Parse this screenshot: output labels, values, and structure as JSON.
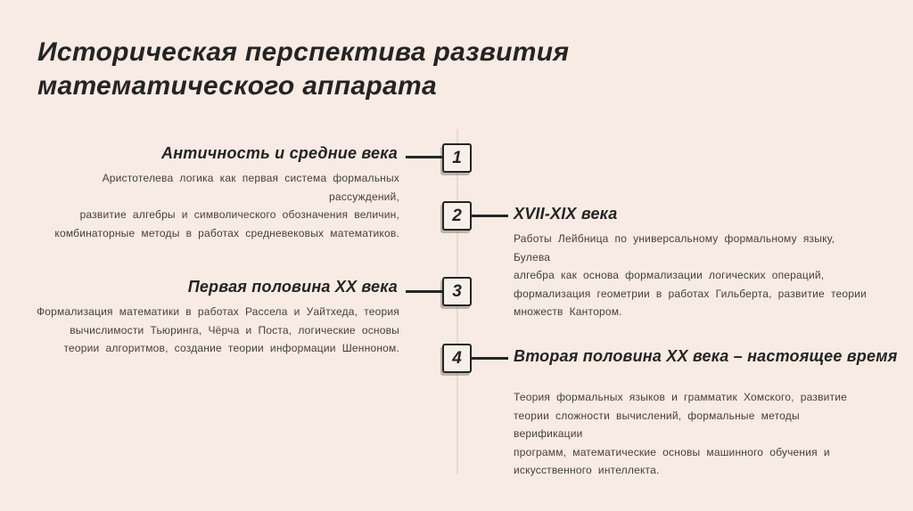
{
  "page": {
    "title": "Историческая перспектива развития\nматематического аппарата"
  },
  "colors": {
    "background": "#f8ebe3",
    "timeline_line": "#e9dbd3",
    "accent_dark": "#242424",
    "body_text": "#443f3c",
    "box_fill": "#f6f0e9"
  },
  "timeline": {
    "items": [
      {
        "number": "1",
        "side": "left",
        "heading": "Античность и средние века",
        "body": "Аристотелева логика как первая система формальных рассуждений,\nразвитие алгебры и символического обозначения величин,\nкомбинаторные методы в работах средневековых математиков."
      },
      {
        "number": "2",
        "side": "right",
        "heading": "XVII-XIX века",
        "body": "Работы Лейбница по универсальному формальному языку, Булева\nалгебра как основа формализации логических операций,\nформализация геометрии в работах Гильберта, развитие теории\nмножеств Кантором."
      },
      {
        "number": "3",
        "side": "left",
        "heading": "Первая половина XX века",
        "body": "Формализация математики в работах Рассела и Уайтхеда, теория\nвычислимости Тьюринга, Чёрча и Поста, логические основы\nтеории алгоритмов, создание теории информации Шенноном."
      },
      {
        "number": "4",
        "side": "right",
        "heading": "Вторая половина XX века – настоящее время",
        "body": "Теория формальных языков и грамматик Хомского, развитие\nтеории сложности вычислений, формальные методы верификации\nпрограмм, математические основы машинного обучения и\nискусственного интеллекта."
      }
    ]
  }
}
